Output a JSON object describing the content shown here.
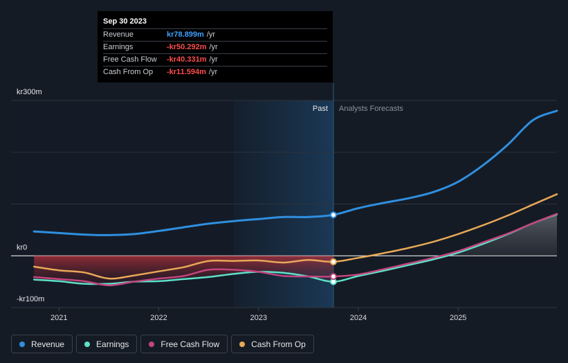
{
  "chart_data": {
    "type": "line",
    "y_unit_prefix": "kr",
    "ylim": [
      -100,
      300
    ],
    "y_axis_labels": [
      {
        "value": 300,
        "text": "kr300m"
      },
      {
        "value": 0,
        "text": "kr0"
      },
      {
        "value": -100,
        "text": "-kr100m"
      }
    ],
    "x_ticks": [
      {
        "x": 2021.0,
        "label": "2021"
      },
      {
        "x": 2022.0,
        "label": "2022"
      },
      {
        "x": 2023.0,
        "label": "2023"
      },
      {
        "x": 2024.0,
        "label": "2024"
      },
      {
        "x": 2025.0,
        "label": "2025"
      }
    ],
    "xlim": [
      2020.52,
      2025.99
    ],
    "past_label": "Past",
    "forecast_label": "Analysts Forecasts",
    "divider_x": 2023.75,
    "highlight_start_x": 2022.75,
    "grid": true,
    "series": [
      {
        "name": "Revenue",
        "color": "#2f8fe0",
        "points": [
          [
            2020.75,
            47
          ],
          [
            2021.0,
            44
          ],
          [
            2021.25,
            41
          ],
          [
            2021.5,
            40
          ],
          [
            2021.75,
            42
          ],
          [
            2022.0,
            48
          ],
          [
            2022.25,
            55
          ],
          [
            2022.5,
            62
          ],
          [
            2022.75,
            67
          ],
          [
            2023.0,
            71
          ],
          [
            2023.25,
            75
          ],
          [
            2023.5,
            75
          ],
          [
            2023.75,
            79
          ],
          [
            2024.0,
            92
          ],
          [
            2024.25,
            102
          ],
          [
            2024.5,
            111
          ],
          [
            2024.75,
            123
          ],
          [
            2025.0,
            143
          ],
          [
            2025.25,
            175
          ],
          [
            2025.5,
            215
          ],
          [
            2025.75,
            262
          ],
          [
            2025.99,
            280
          ]
        ]
      },
      {
        "name": "Earnings",
        "color": "#5ee0c8",
        "points": [
          [
            2020.75,
            -46
          ],
          [
            2021.0,
            -49
          ],
          [
            2021.25,
            -54
          ],
          [
            2021.5,
            -54
          ],
          [
            2021.75,
            -50
          ],
          [
            2022.0,
            -49
          ],
          [
            2022.25,
            -45
          ],
          [
            2022.5,
            -41
          ],
          [
            2022.75,
            -35
          ],
          [
            2023.0,
            -31
          ],
          [
            2023.25,
            -33
          ],
          [
            2023.5,
            -40
          ],
          [
            2023.75,
            -50
          ],
          [
            2024.0,
            -39
          ],
          [
            2024.25,
            -29
          ],
          [
            2024.5,
            -18
          ],
          [
            2024.75,
            -7
          ],
          [
            2025.0,
            6
          ],
          [
            2025.25,
            23
          ],
          [
            2025.5,
            42
          ],
          [
            2025.75,
            63
          ],
          [
            2025.99,
            80
          ]
        ]
      },
      {
        "name": "Free Cash Flow",
        "color": "#c2457e",
        "points": [
          [
            2020.75,
            -41
          ],
          [
            2021.0,
            -45
          ],
          [
            2021.25,
            -49
          ],
          [
            2021.5,
            -57
          ],
          [
            2021.75,
            -50
          ],
          [
            2022.0,
            -44
          ],
          [
            2022.25,
            -39
          ],
          [
            2022.5,
            -27
          ],
          [
            2022.75,
            -27
          ],
          [
            2023.0,
            -31
          ],
          [
            2023.25,
            -39
          ],
          [
            2023.5,
            -40
          ],
          [
            2023.75,
            -40
          ],
          [
            2024.0,
            -36
          ],
          [
            2024.25,
            -26
          ],
          [
            2024.5,
            -15
          ],
          [
            2024.75,
            -4
          ],
          [
            2025.0,
            9
          ],
          [
            2025.25,
            26
          ],
          [
            2025.5,
            43
          ],
          [
            2025.75,
            63
          ],
          [
            2025.99,
            81
          ]
        ]
      },
      {
        "name": "Cash From Op",
        "color": "#e8a857",
        "points": [
          [
            2020.75,
            -21
          ],
          [
            2021.0,
            -28
          ],
          [
            2021.25,
            -32
          ],
          [
            2021.5,
            -44
          ],
          [
            2021.75,
            -38
          ],
          [
            2022.0,
            -30
          ],
          [
            2022.25,
            -22
          ],
          [
            2022.5,
            -10
          ],
          [
            2022.75,
            -10
          ],
          [
            2023.0,
            -9
          ],
          [
            2023.25,
            -13
          ],
          [
            2023.5,
            -8
          ],
          [
            2023.75,
            -11.6
          ],
          [
            2024.0,
            -4
          ],
          [
            2024.25,
            5
          ],
          [
            2024.5,
            15
          ],
          [
            2024.75,
            27
          ],
          [
            2025.0,
            42
          ],
          [
            2025.25,
            59
          ],
          [
            2025.5,
            78
          ],
          [
            2025.75,
            99
          ],
          [
            2025.99,
            119
          ]
        ]
      }
    ]
  },
  "tooltip": {
    "date": "Sep 30 2023",
    "rows": [
      {
        "name": "Revenue",
        "value": "kr78.899m",
        "unit": "/yr"
      },
      {
        "name": "Earnings",
        "value": "-kr50.292m",
        "unit": "/yr"
      },
      {
        "name": "Free Cash Flow",
        "value": "-kr40.331m",
        "unit": "/yr"
      },
      {
        "name": "Cash From Op",
        "value": "-kr11.594m",
        "unit": "/yr"
      }
    ]
  },
  "legend": [
    {
      "label": "Revenue",
      "color": "#2f8fe0"
    },
    {
      "label": "Earnings",
      "color": "#5ee0c8"
    },
    {
      "label": "Free Cash Flow",
      "color": "#c2457e"
    },
    {
      "label": "Cash From Op",
      "color": "#e8a857"
    }
  ]
}
